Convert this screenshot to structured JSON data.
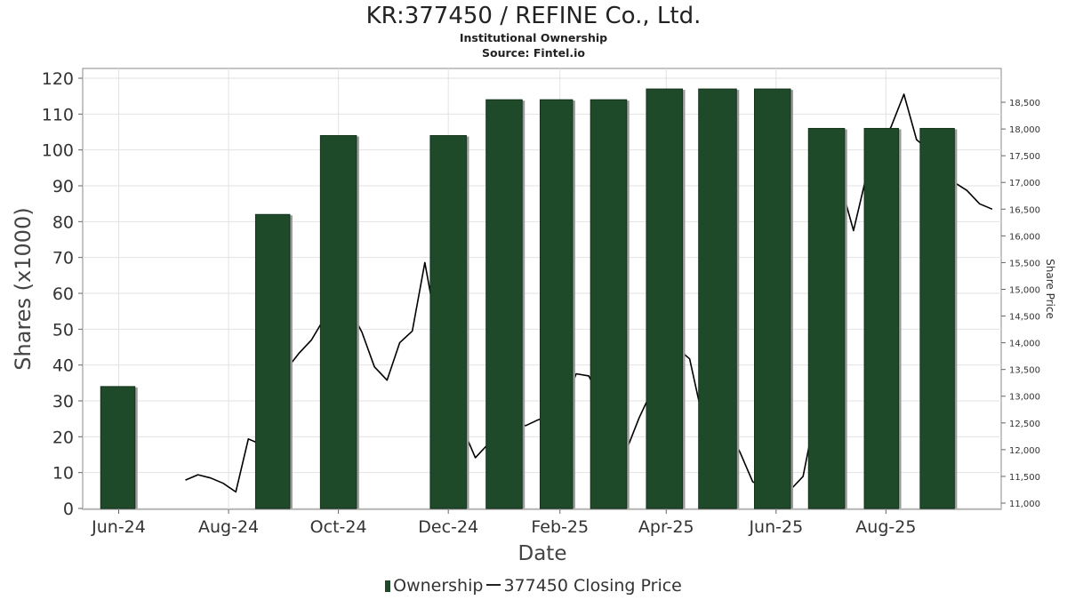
{
  "chart_data": {
    "type": "bar",
    "title": "KR:377450 / REFINE Co., Ltd.",
    "subtitle": "Institutional Ownership",
    "source": "Source: Fintel.io",
    "xlabel": "Date",
    "ylabel": "Shares (x1000)",
    "y2label": "Share Price",
    "ylim": [
      0,
      120
    ],
    "y2lim": [
      10900,
      18950
    ],
    "yticks": [
      0,
      10,
      20,
      30,
      40,
      50,
      60,
      70,
      80,
      90,
      100,
      110,
      120
    ],
    "y2ticks": [
      "11,000",
      "11,500",
      "12,000",
      "12,500",
      "13,000",
      "13,500",
      "14,000",
      "14,500",
      "15,000",
      "15,500",
      "16,000",
      "16,500",
      "17,000",
      "17,500",
      "18,000",
      "18,500"
    ],
    "y2tick_values": [
      11000,
      11500,
      12000,
      12500,
      13000,
      13500,
      14000,
      14500,
      15000,
      15500,
      16000,
      16500,
      17000,
      17500,
      18000,
      18500
    ],
    "xlim": [
      "2024-05-12",
      "2025-10-04"
    ],
    "xticks": [
      {
        "label": "Jun-24",
        "date": "2024-06-01"
      },
      {
        "label": "Aug-24",
        "date": "2024-08-01"
      },
      {
        "label": "Oct-24",
        "date": "2024-10-01"
      },
      {
        "label": "Dec-24",
        "date": "2024-12-01"
      },
      {
        "label": "Feb-25",
        "date": "2025-02-01"
      },
      {
        "label": "Apr-25",
        "date": "2025-04-01"
      },
      {
        "label": "Jun-25",
        "date": "2025-06-01"
      },
      {
        "label": "Aug-25",
        "date": "2025-08-01"
      }
    ],
    "grid": true,
    "legend_position": "bottom-center",
    "colors": {
      "bar": "#1f4a2a",
      "bar_shadow": "#9a9a9a",
      "price_line": "#000000",
      "grid": "#e2e2e2"
    },
    "series": [
      {
        "name": "Ownership",
        "type": "bar",
        "points": [
          {
            "start": "2024-05-22",
            "end": "2024-06-10",
            "value": 34
          },
          {
            "start": "2024-08-16",
            "end": "2024-09-04",
            "value": 82
          },
          {
            "start": "2024-09-21",
            "end": "2024-10-11",
            "value": 104
          },
          {
            "start": "2024-11-21",
            "end": "2024-12-11",
            "value": 104
          },
          {
            "start": "2024-12-22",
            "end": "2025-01-11",
            "value": 114
          },
          {
            "start": "2025-01-21",
            "end": "2025-02-08",
            "value": 114
          },
          {
            "start": "2025-02-18",
            "end": "2025-03-10",
            "value": 114
          },
          {
            "start": "2025-03-21",
            "end": "2025-04-10",
            "value": 117
          },
          {
            "start": "2025-04-19",
            "end": "2025-05-10",
            "value": 117
          },
          {
            "start": "2025-05-20",
            "end": "2025-06-09",
            "value": 117
          },
          {
            "start": "2025-06-19",
            "end": "2025-07-09",
            "value": 106
          },
          {
            "start": "2025-07-20",
            "end": "2025-08-08",
            "value": 106
          },
          {
            "start": "2025-08-20",
            "end": "2025-09-08",
            "value": 106
          }
        ]
      },
      {
        "name": "377450 Closing Price",
        "type": "line",
        "points": [
          {
            "date": "2024-07-08",
            "value": 11430
          },
          {
            "date": "2024-07-15",
            "value": 11530
          },
          {
            "date": "2024-07-22",
            "value": 11470
          },
          {
            "date": "2024-07-29",
            "value": 11370
          },
          {
            "date": "2024-08-05",
            "value": 11210
          },
          {
            "date": "2024-08-12",
            "value": 12200
          },
          {
            "date": "2024-08-19",
            "value": 12100
          },
          {
            "date": "2024-08-26",
            "value": 12700
          },
          {
            "date": "2024-09-02",
            "value": 13500
          },
          {
            "date": "2024-09-09",
            "value": 13800
          },
          {
            "date": "2024-09-16",
            "value": 14050
          },
          {
            "date": "2024-09-23",
            "value": 14450
          },
          {
            "date": "2024-09-30",
            "value": 14700
          },
          {
            "date": "2024-10-07",
            "value": 14650
          },
          {
            "date": "2024-10-14",
            "value": 14200
          },
          {
            "date": "2024-10-21",
            "value": 13550
          },
          {
            "date": "2024-10-28",
            "value": 13300
          },
          {
            "date": "2024-11-04",
            "value": 14000
          },
          {
            "date": "2024-11-11",
            "value": 14220
          },
          {
            "date": "2024-11-18",
            "value": 15500
          },
          {
            "date": "2024-11-25",
            "value": 14200
          },
          {
            "date": "2024-12-02",
            "value": 13000
          },
          {
            "date": "2024-12-09",
            "value": 12400
          },
          {
            "date": "2024-12-16",
            "value": 11850
          },
          {
            "date": "2024-12-23",
            "value": 12100
          },
          {
            "date": "2024-12-30",
            "value": 12350
          },
          {
            "date": "2025-01-06",
            "value": 12500
          },
          {
            "date": "2025-01-13",
            "value": 12450
          },
          {
            "date": "2025-01-20",
            "value": 12560
          },
          {
            "date": "2025-01-27",
            "value": 12640
          },
          {
            "date": "2025-02-03",
            "value": 12800
          },
          {
            "date": "2025-02-10",
            "value": 13420
          },
          {
            "date": "2025-02-17",
            "value": 13380
          },
          {
            "date": "2025-02-24",
            "value": 12900
          },
          {
            "date": "2025-03-03",
            "value": 12520
          },
          {
            "date": "2025-03-10",
            "value": 12000
          },
          {
            "date": "2025-03-17",
            "value": 12600
          },
          {
            "date": "2025-03-24",
            "value": 13100
          },
          {
            "date": "2025-03-31",
            "value": 13600
          },
          {
            "date": "2025-04-07",
            "value": 13900
          },
          {
            "date": "2025-04-14",
            "value": 13700
          },
          {
            "date": "2025-04-21",
            "value": 12620
          },
          {
            "date": "2025-04-28",
            "value": 12540
          },
          {
            "date": "2025-05-05",
            "value": 12400
          },
          {
            "date": "2025-05-12",
            "value": 11950
          },
          {
            "date": "2025-05-19",
            "value": 11400
          },
          {
            "date": "2025-05-26",
            "value": 11270
          },
          {
            "date": "2025-06-02",
            "value": 11130
          },
          {
            "date": "2025-06-09",
            "value": 11250
          },
          {
            "date": "2025-06-16",
            "value": 11500
          },
          {
            "date": "2025-06-23",
            "value": 12700
          },
          {
            "date": "2025-06-30",
            "value": 15700
          },
          {
            "date": "2025-07-07",
            "value": 16950
          },
          {
            "date": "2025-07-14",
            "value": 16100
          },
          {
            "date": "2025-07-21",
            "value": 17100
          },
          {
            "date": "2025-07-28",
            "value": 17600
          },
          {
            "date": "2025-08-04",
            "value": 18050
          },
          {
            "date": "2025-08-11",
            "value": 18650
          },
          {
            "date": "2025-08-18",
            "value": 17800
          },
          {
            "date": "2025-08-25",
            "value": 17600
          },
          {
            "date": "2025-09-01",
            "value": 17400
          },
          {
            "date": "2025-09-08",
            "value": 17000
          },
          {
            "date": "2025-09-15",
            "value": 16850
          },
          {
            "date": "2025-09-22",
            "value": 16600
          },
          {
            "date": "2025-09-29",
            "value": 16500
          }
        ]
      }
    ]
  }
}
